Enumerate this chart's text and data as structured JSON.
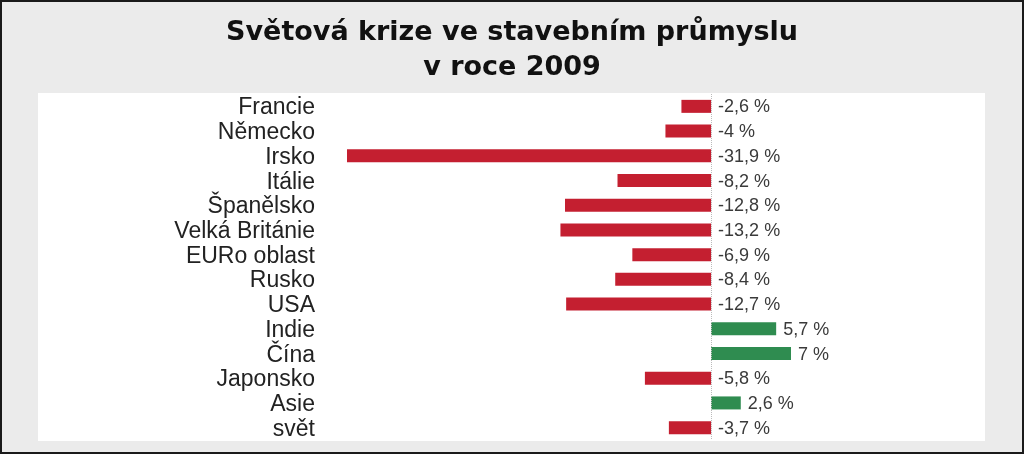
{
  "chart_data": {
    "type": "bar",
    "orientation": "horizontal",
    "title": "Světová krize ve stavebním průmyslu\nv roce 2009",
    "categories": [
      "Francie",
      "Německo",
      "Irsko",
      "Itálie",
      "Španělsko",
      "Velká Británie",
      "EURo oblast",
      "Rusko",
      "USA",
      "Indie",
      "Čína",
      "Japonsko",
      "Asie",
      "svět"
    ],
    "values": [
      -2.6,
      -4,
      -31.9,
      -8.2,
      -12.8,
      -13.2,
      -6.9,
      -8.4,
      -12.7,
      5.7,
      7,
      -5.8,
      2.6,
      -3.7
    ],
    "colors": [
      "#c41f30",
      "#c41f30",
      "#c41f30",
      "#c41f30",
      "#c41f30",
      "#c41f30",
      "#c41f30",
      "#c41f30",
      "#c41f30",
      "#2f8c50",
      "#2f8c50",
      "#c41f30",
      "#2f8c50",
      "#c41f30"
    ],
    "value_labels": [
      "-2,6 %",
      "-4 %",
      "-31,9 %",
      "-8,2 %",
      "-12,8 %",
      "-13,2 %",
      "-6,9 %",
      "-8,4 %",
      "-12,7 %",
      "5,7 %",
      "7 %",
      "-5,8 %",
      "2,6 %",
      "-3,7 %"
    ],
    "ref_lines": [
      {
        "axis": "x",
        "value": 0,
        "color": "#bbbbbb",
        "line_style": "dotted"
      }
    ]
  }
}
